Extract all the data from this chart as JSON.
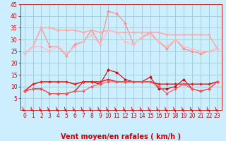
{
  "x": [
    0,
    1,
    2,
    3,
    4,
    5,
    6,
    7,
    8,
    9,
    10,
    11,
    12,
    13,
    14,
    15,
    16,
    17,
    18,
    19,
    20,
    21,
    22,
    23
  ],
  "series": [
    {
      "name": "rafales_high",
      "color": "#ff8888",
      "lw": 0.8,
      "marker": "D",
      "ms": 2.0,
      "values": [
        24,
        27,
        35,
        27,
        27,
        23,
        28,
        29,
        34,
        28,
        42,
        41,
        37,
        28,
        31,
        33,
        29,
        26,
        30,
        26,
        25,
        24,
        25,
        26
      ]
    },
    {
      "name": "mean_high",
      "color": "#ffaaaa",
      "lw": 1.2,
      "marker": "D",
      "ms": 2.0,
      "values": [
        24,
        27,
        35,
        35,
        34,
        34,
        34,
        33,
        34,
        33,
        34,
        33,
        33,
        33,
        33,
        33,
        33,
        32,
        32,
        32,
        32,
        32,
        32,
        26
      ]
    },
    {
      "name": "mean_mid",
      "color": "#ffbbbb",
      "lw": 0.8,
      "marker": "D",
      "ms": 2.0,
      "values": [
        24,
        27,
        27,
        25,
        27,
        24,
        27,
        29,
        32,
        28,
        34,
        33,
        29,
        28,
        31,
        32,
        29,
        27,
        30,
        27,
        26,
        25,
        25,
        26
      ]
    },
    {
      "name": "vent_moy_low",
      "color": "#cc0000",
      "lw": 0.8,
      "marker": "D",
      "ms": 2.0,
      "values": [
        8,
        9,
        9,
        7,
        7,
        7,
        8,
        12,
        12,
        11,
        17,
        16,
        13,
        12,
        12,
        14,
        9,
        9,
        10,
        13,
        9,
        8,
        9,
        12
      ]
    },
    {
      "name": "vent_base1",
      "color": "#ee2222",
      "lw": 1.2,
      "marker": "D",
      "ms": 2.0,
      "values": [
        8,
        11,
        12,
        12,
        12,
        12,
        11,
        12,
        12,
        12,
        13,
        12,
        12,
        12,
        12,
        12,
        11,
        11,
        11,
        11,
        11,
        11,
        11,
        12
      ]
    },
    {
      "name": "vent_base2",
      "color": "#ff5555",
      "lw": 0.8,
      "marker": "D",
      "ms": 2.0,
      "values": [
        8,
        9,
        9,
        7,
        7,
        7,
        8,
        8,
        10,
        11,
        12,
        12,
        12,
        12,
        12,
        12,
        10,
        7,
        9,
        11,
        9,
        8,
        9,
        12
      ]
    }
  ],
  "xlabel": "Vent moyen/en rafales ( km/h )",
  "ylim": [
    0,
    45
  ],
  "yticks": [
    5,
    10,
    15,
    20,
    25,
    30,
    35,
    40,
    45
  ],
  "xticks": [
    0,
    1,
    2,
    3,
    4,
    5,
    6,
    7,
    8,
    9,
    10,
    11,
    12,
    13,
    14,
    15,
    16,
    17,
    18,
    19,
    20,
    21,
    22,
    23
  ],
  "bg_color": "#cceeff",
  "grid_color": "#99cccc",
  "arrow_color": "#cc0000",
  "tick_color": "#cc0000",
  "xlabel_color": "#cc0000",
  "xlabel_fontsize": 7,
  "tick_fontsize": 5.5
}
